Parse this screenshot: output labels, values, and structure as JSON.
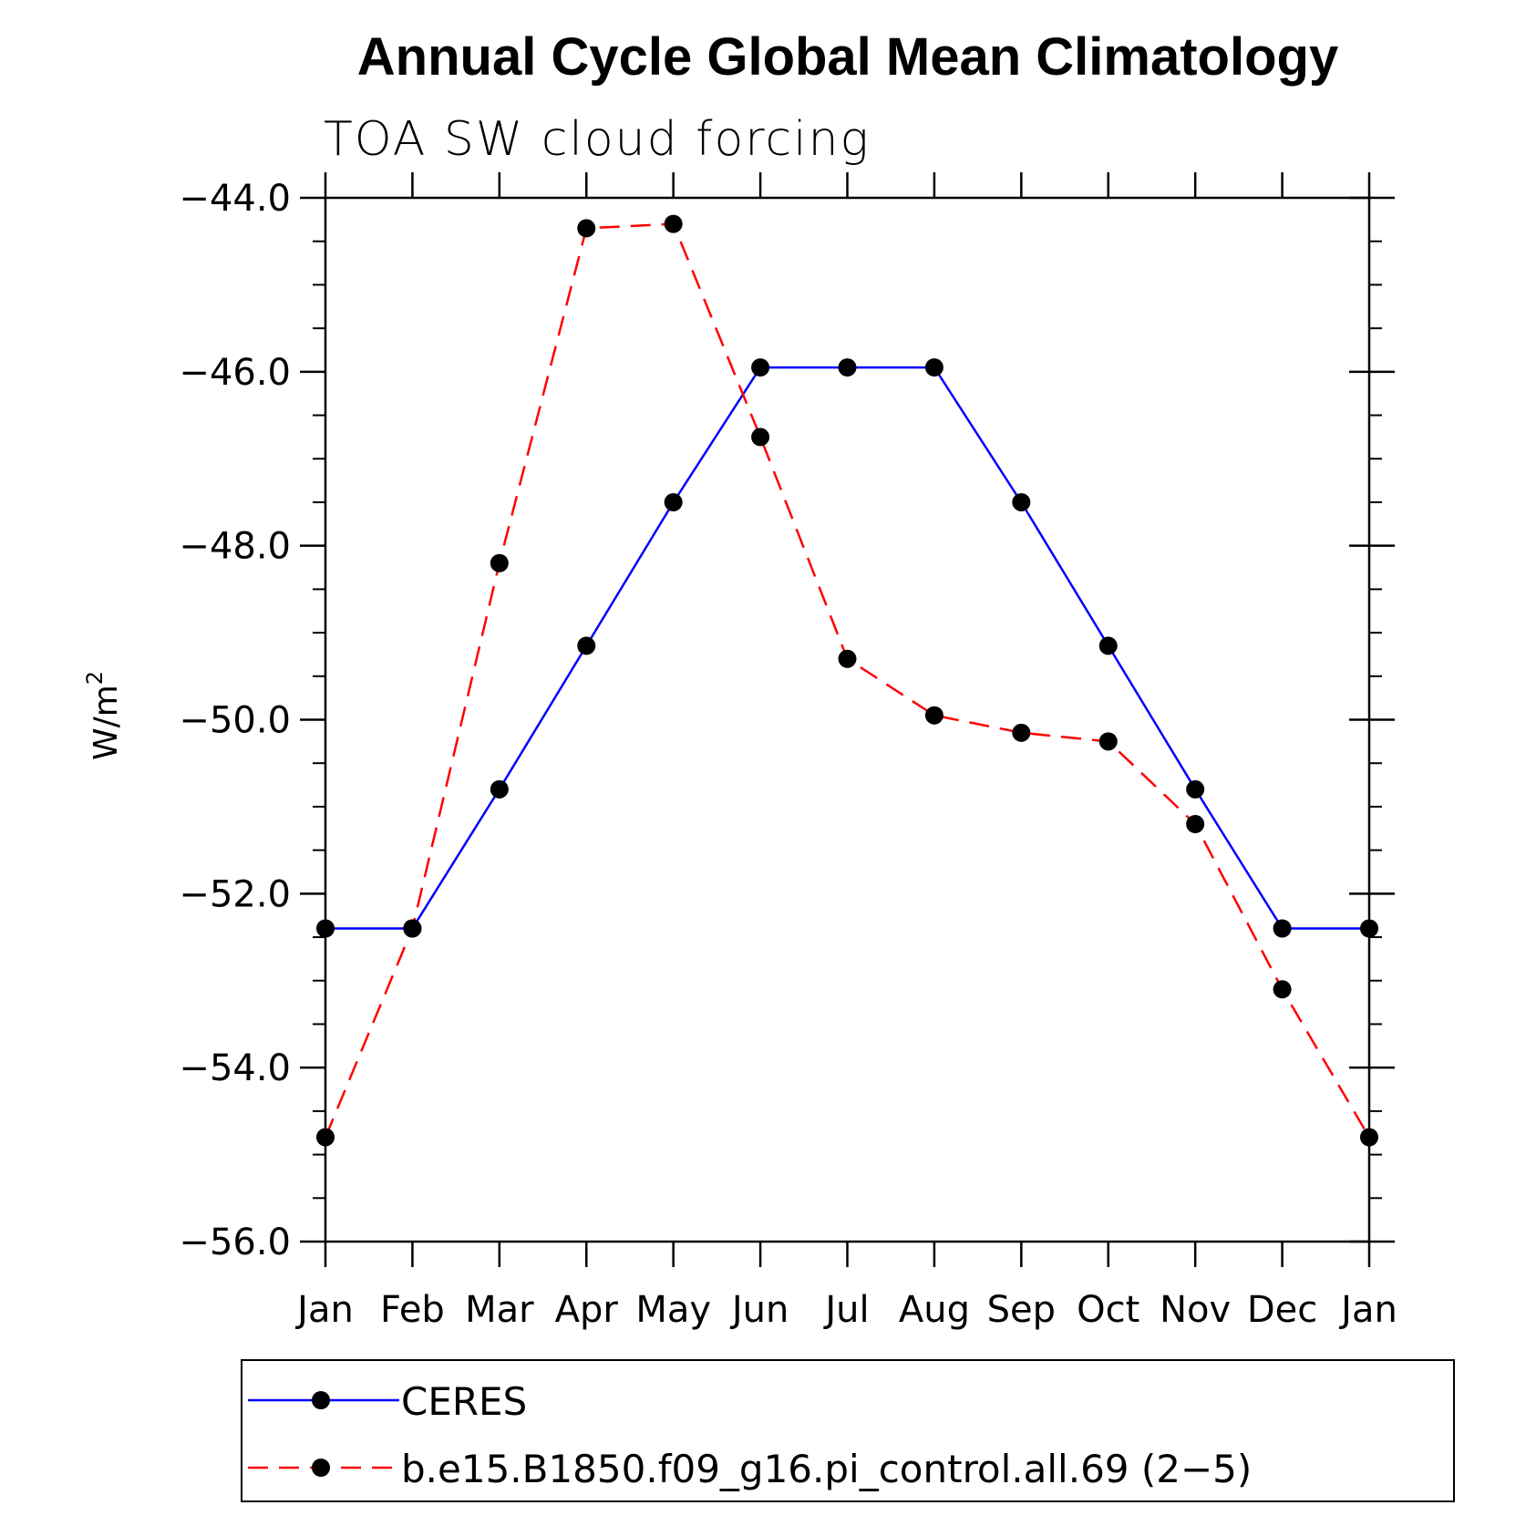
{
  "chart_data": {
    "type": "line",
    "title": "Annual Cycle Global Mean Climatology",
    "subtitle": "TOA SW cloud forcing",
    "ylabel": "W/m",
    "ylabel_sup": "2",
    "ylim": [
      -56.0,
      -44.0
    ],
    "yticks": [
      "-44.0",
      "-46.0",
      "-48.0",
      "-50.0",
      "-52.0",
      "-54.0",
      "-56.0"
    ],
    "ytick_values": [
      -44,
      -46,
      -48,
      -50,
      -52,
      -54,
      -56
    ],
    "categories": [
      "Jan",
      "Feb",
      "Mar",
      "Apr",
      "May",
      "Jun",
      "Jul",
      "Aug",
      "Sep",
      "Oct",
      "Nov",
      "Dec",
      "Jan"
    ],
    "series": [
      {
        "name": "CERES",
        "color": "#0000ff",
        "style": "solid",
        "values": [
          -52.4,
          -52.4,
          -50.8,
          -49.15,
          -47.5,
          -45.95,
          -45.95,
          -45.95,
          -47.5,
          -49.15,
          -50.8,
          -52.4,
          -52.4
        ]
      },
      {
        "name": "b.e15.B1850.f09_g16.pi_control.all.69 (2−5)",
        "color": "#ff0000",
        "style": "dashed",
        "values": [
          -54.8,
          -52.4,
          -48.2,
          -44.35,
          -44.3,
          -46.75,
          -49.3,
          -49.95,
          -50.15,
          -50.25,
          -51.2,
          -53.1,
          -54.8
        ]
      }
    ],
    "marker_color": "#000000",
    "legend_position": "bottom"
  }
}
